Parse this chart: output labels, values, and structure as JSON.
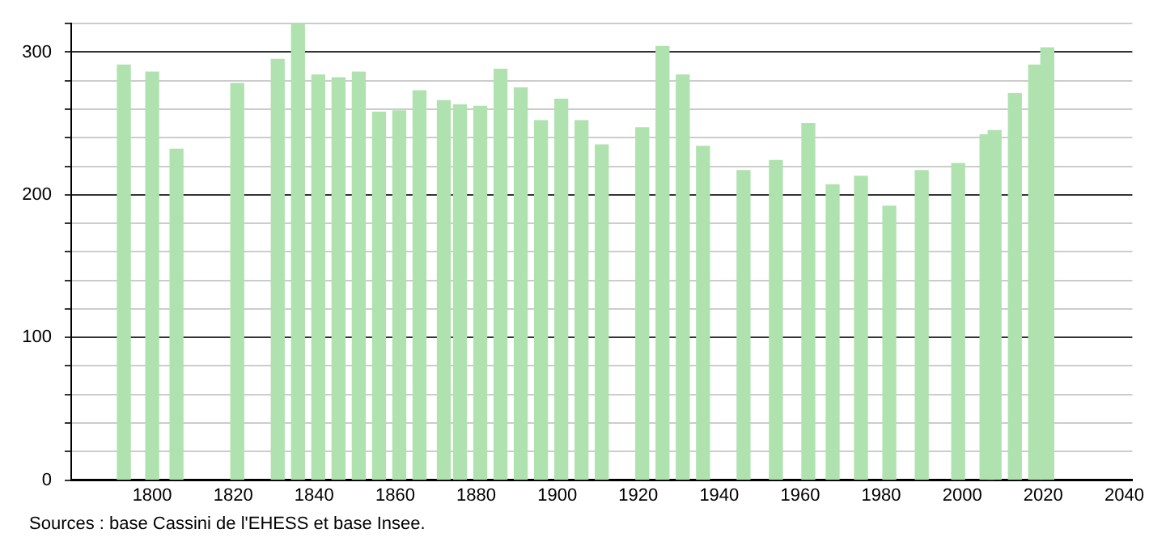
{
  "chart_data": {
    "type": "bar",
    "x": [
      1793,
      1800,
      1806,
      1821,
      1831,
      1836,
      1841,
      1846,
      1851,
      1856,
      1861,
      1866,
      1872,
      1876,
      1881,
      1886,
      1891,
      1896,
      1901,
      1906,
      1911,
      1921,
      1926,
      1931,
      1936,
      1946,
      1954,
      1962,
      1968,
      1975,
      1982,
      1990,
      1999,
      2006,
      2008,
      2013,
      2018,
      2021
    ],
    "values": [
      291,
      286,
      232,
      278,
      295,
      320,
      284,
      282,
      286,
      258,
      259,
      273,
      266,
      263,
      262,
      288,
      275,
      252,
      267,
      252,
      235,
      247,
      304,
      284,
      234,
      217,
      224,
      250,
      207,
      213,
      192,
      217,
      222,
      242,
      245,
      271,
      291,
      303
    ],
    "color": "#b0e2b0",
    "xlim": [
      1780,
      2042
    ],
    "xticks": [
      1800,
      1820,
      1840,
      1860,
      1880,
      1900,
      1920,
      1940,
      1960,
      1980,
      2000,
      2020,
      2040
    ],
    "ylim": [
      0,
      320
    ],
    "yticks": [
      0,
      {
        "value": 20,
        "label": null
      },
      {
        "value": 40,
        "label": null
      },
      {
        "value": 60,
        "label": null
      },
      {
        "value": 80,
        "label": null
      },
      100,
      {
        "value": 120,
        "label": null
      },
      {
        "value": 140,
        "label": null
      },
      {
        "value": 160,
        "label": null
      },
      {
        "value": 180,
        "label": null
      },
      200,
      {
        "value": 220,
        "label": null
      },
      {
        "value": 240,
        "label": null
      },
      {
        "value": 260,
        "label": null
      },
      {
        "value": 280,
        "label": null
      },
      300,
      {
        "value": 320,
        "label": null
      }
    ],
    "grid": "y",
    "legend": false,
    "annotations": [
      "Sources : base Cassini de l'EHESS et base Insee."
    ]
  }
}
